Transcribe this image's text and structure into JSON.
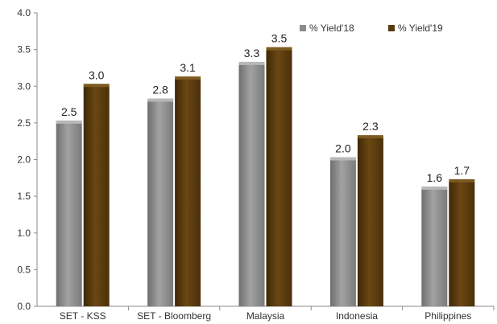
{
  "chart_data": {
    "type": "bar",
    "title": "",
    "xlabel": "",
    "ylabel": "",
    "categories": [
      "SET - KSS",
      "SET - Bloomberg",
      "Malaysia",
      "Indonesia",
      "Philippines"
    ],
    "series": [
      {
        "name": "% Yield'18",
        "values": [
          2.5,
          2.8,
          3.3,
          2.0,
          1.6
        ],
        "labels": [
          "2.5",
          "2.8",
          "3.3",
          "2.0",
          "1.6"
        ],
        "color": "#8c8c8c"
      },
      {
        "name": "% Yield'19",
        "values": [
          3.0,
          3.1,
          3.5,
          2.3,
          1.7
        ],
        "labels": [
          "3.0",
          "3.1",
          "3.5",
          "2.3",
          "1.7"
        ],
        "color": "#5a3a0e"
      }
    ],
    "ylim": [
      0,
      4.0
    ],
    "yticks": [
      "0.0",
      "0.5",
      "1.0",
      "1.5",
      "2.0",
      "2.5",
      "3.0",
      "3.5",
      "4.0"
    ],
    "grid": false,
    "legend_position": "top-right"
  }
}
